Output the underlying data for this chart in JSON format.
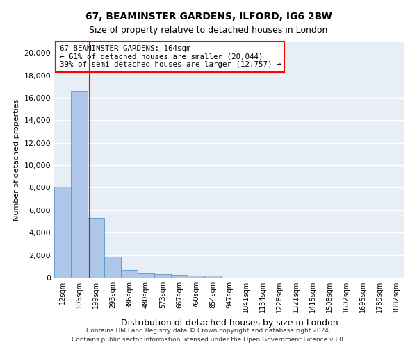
{
  "title1": "67, BEAMINSTER GARDENS, ILFORD, IG6 2BW",
  "title2": "Size of property relative to detached houses in London",
  "xlabel": "Distribution of detached houses by size in London",
  "ylabel": "Number of detached properties",
  "bin_labels": [
    "12sqm",
    "106sqm",
    "199sqm",
    "293sqm",
    "386sqm",
    "480sqm",
    "573sqm",
    "667sqm",
    "760sqm",
    "854sqm",
    "947sqm",
    "1041sqm",
    "1134sqm",
    "1228sqm",
    "1321sqm",
    "1415sqm",
    "1508sqm",
    "1602sqm",
    "1695sqm",
    "1789sqm",
    "1882sqm"
  ],
  "bar_heights": [
    8100,
    16600,
    5300,
    1850,
    700,
    380,
    290,
    230,
    210,
    195,
    0,
    0,
    0,
    0,
    0,
    0,
    0,
    0,
    0,
    0,
    0
  ],
  "bar_color": "#aec6e8",
  "bar_edge_color": "#5599cc",
  "annotation_line1": "67 BEAMINSTER GARDENS: 164sqm",
  "annotation_line2": "← 61% of detached houses are smaller (20,044)",
  "annotation_line3": "39% of semi-detached houses are larger (12,757) →",
  "vline_color": "red",
  "vline_x": 1.62,
  "ylim": [
    0,
    21000
  ],
  "yticks": [
    0,
    2000,
    4000,
    6000,
    8000,
    10000,
    12000,
    14000,
    16000,
    18000,
    20000
  ],
  "footer1": "Contains HM Land Registry data © Crown copyright and database right 2024.",
  "footer2": "Contains public sector information licensed under the Open Government Licence v3.0.",
  "plot_bg_color": "#e8eef6"
}
